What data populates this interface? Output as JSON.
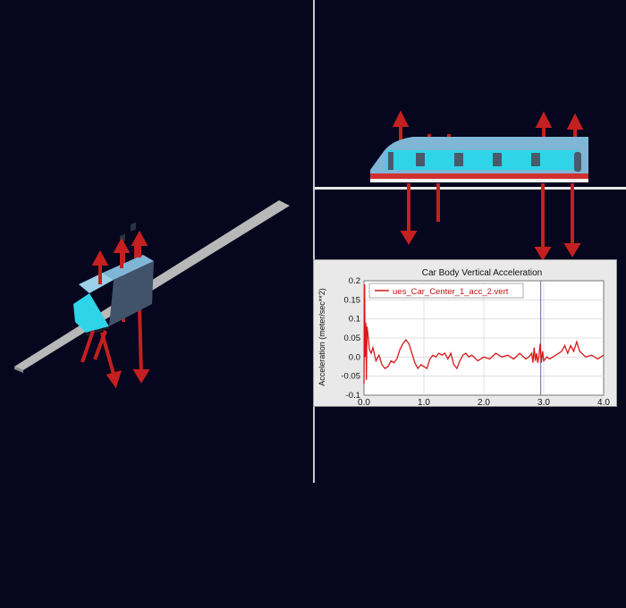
{
  "plot": {
    "title": "Car Body Vertical Acceleration",
    "ylabel": "Acceleration (meter/sec**2)",
    "legend": "ues_Car_Center_1_acc_2.vert",
    "x_ticks": [
      "0.0",
      "1.0",
      "2.0",
      "3.0",
      "4.0"
    ],
    "y_ticks": [
      "0.2",
      "0.15",
      "0.1",
      "0.05",
      "0.0",
      "-0.05",
      "-0.1"
    ]
  },
  "chart_data": {
    "type": "line",
    "title": "Car Body Vertical Acceleration",
    "xlabel": "",
    "ylabel": "Acceleration (meter/sec**2)",
    "xlim": [
      0.0,
      4.0
    ],
    "ylim": [
      -0.1,
      0.2
    ],
    "grid": true,
    "legend_position": "top-left",
    "colors": {
      "series": "#d81818",
      "cursor": "#6a6aa0"
    },
    "cursor_x": 2.95,
    "series": [
      {
        "name": "ues_Car_Center_1_acc_2.vert",
        "x": [
          0.0,
          0.01,
          0.02,
          0.03,
          0.04,
          0.05,
          0.07,
          0.09,
          0.12,
          0.15,
          0.2,
          0.25,
          0.3,
          0.35,
          0.4,
          0.45,
          0.5,
          0.55,
          0.6,
          0.65,
          0.7,
          0.75,
          0.8,
          0.85,
          0.9,
          0.95,
          1.0,
          1.05,
          1.1,
          1.15,
          1.2,
          1.25,
          1.3,
          1.35,
          1.4,
          1.45,
          1.5,
          1.55,
          1.6,
          1.65,
          1.7,
          1.75,
          1.8,
          1.9,
          2.0,
          2.1,
          2.2,
          2.3,
          2.4,
          2.5,
          2.6,
          2.7,
          2.75,
          2.8,
          2.82,
          2.84,
          2.86,
          2.88,
          2.9,
          2.92,
          2.94,
          2.96,
          2.98,
          3.0,
          3.05,
          3.1,
          3.2,
          3.3,
          3.35,
          3.4,
          3.45,
          3.5,
          3.55,
          3.6,
          3.7,
          3.8,
          3.9,
          4.0
        ],
        "y": [
          -0.07,
          0.19,
          0.0,
          0.09,
          -0.06,
          0.08,
          0.055,
          0.02,
          0.01,
          0.025,
          -0.01,
          0.005,
          -0.02,
          -0.03,
          -0.025,
          -0.01,
          -0.015,
          -0.005,
          0.02,
          0.035,
          0.045,
          0.035,
          0.01,
          -0.015,
          -0.03,
          -0.02,
          -0.025,
          -0.03,
          -0.005,
          0.005,
          0.0,
          0.01,
          0.005,
          0.01,
          -0.005,
          0.01,
          -0.02,
          -0.03,
          -0.01,
          0.005,
          0.01,
          0.0,
          0.005,
          -0.01,
          0.0,
          -0.005,
          0.01,
          0.0,
          0.005,
          -0.005,
          0.01,
          -0.005,
          0.0,
          0.01,
          -0.015,
          0.025,
          -0.01,
          0.01,
          -0.015,
          0.0,
          0.035,
          -0.015,
          0.015,
          -0.01,
          0.0,
          -0.005,
          0.005,
          0.015,
          0.03,
          0.01,
          0.03,
          0.015,
          0.04,
          0.015,
          0.0,
          0.005,
          -0.005,
          0.005
        ]
      }
    ]
  }
}
